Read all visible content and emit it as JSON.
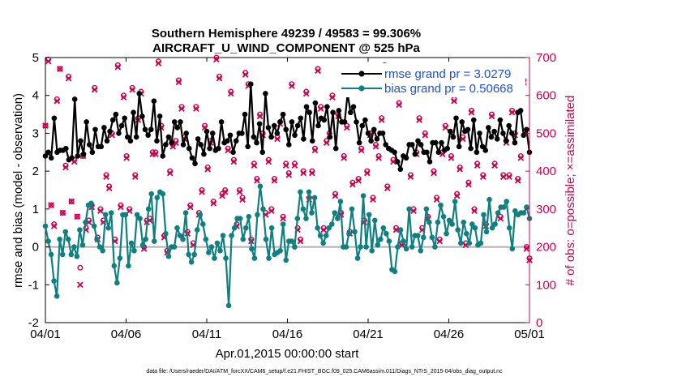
{
  "chart_data": {
    "type": "line",
    "title": [
      "Southern Hemisphere 49239 / 49583 = 99.306%",
      "AIRCRAFT_U_WIND_COMPONENT @ 525 hPa"
    ],
    "xlabel": "Apr.01,2015 00:00:00 start",
    "ylabel": "rmse and bias (model - observation)",
    "ylabel_right": "# of obs: o=possible; ×=assimilated",
    "footnote": "data file: /Users/raeder/DAI/ATM_forcXX/CAM6_setup/f.e21.FHIST_BGC.f09_025.CAM6assim.011/Diags_NTrS_2015-04/obs_diag_output.nc",
    "x_ticks": [
      "04/01",
      "04/06",
      "04/11",
      "04/16",
      "04/21",
      "04/26",
      "05/01"
    ],
    "xlim": [
      0,
      30
    ],
    "ylim": [
      -2,
      5
    ],
    "y_ticks": [
      "-2",
      "-1",
      "0",
      "1",
      "2",
      "3",
      "4",
      "5"
    ],
    "ylim_right": [
      0,
      700
    ],
    "y_ticks_right": [
      "0",
      "100",
      "200",
      "300",
      "400",
      "500",
      "600",
      "700"
    ],
    "legend_position": "top-right",
    "colors": {
      "rmse": "#000000",
      "bias": "#0f8080",
      "obs": "#d1004f",
      "legend_text": "#1d4fe0",
      "zero_line": "#b0b0b0"
    },
    "series": [
      {
        "name": "rmse grand pr = 3.0279",
        "axis": "left",
        "values": [
          2.4,
          2.5,
          2.35,
          3.4,
          2.5,
          2.55,
          2.55,
          2.6,
          2.3,
          2.35,
          3.9,
          2.4,
          2.8,
          2.45,
          3.3,
          2.7,
          2.5,
          3.1,
          2.65,
          2.65,
          3.15,
          2.8,
          3.05,
          3.35,
          3.5,
          3.0,
          3.2,
          3.4,
          2.9,
          2.8,
          3.55,
          2.9,
          4.05,
          3.45,
          3.1,
          2.95,
          3.1,
          3.85,
          2.8,
          3.45,
          2.4,
          2.7,
          2.9,
          2.75,
          3.3,
          3.15,
          3.3,
          2.7,
          3.0,
          2.6,
          2.35,
          2.2,
          2.85,
          2.7,
          2.45,
          3.05,
          2.6,
          3.0,
          2.55,
          2.6,
          3.3,
          2.75,
          2.8,
          2.95,
          2.5,
          2.8,
          3.0,
          3.0,
          3.5,
          2.65,
          4.3,
          2.9,
          2.75,
          3.25,
          2.5,
          4.05,
          3.15,
          2.9,
          3.2,
          3.0,
          3.3,
          3.5,
          3.1,
          2.7,
          3.3,
          2.95,
          3.2,
          3.4,
          2.85,
          3.7,
          3.55,
          2.8,
          3.8,
          3.2,
          3.4,
          3.35,
          3.7,
          2.9,
          3.55,
          2.6,
          3.6,
          3.3,
          3.3,
          4.05,
          3.55,
          3.7,
          3.3,
          2.75,
          3.2,
          3.35,
          3.0,
          2.8,
          3.1,
          2.85,
          3.0,
          3.0,
          2.7,
          2.6,
          2.55,
          2.5,
          2.25,
          2.05,
          2.4,
          2.35,
          2.7,
          2.7,
          2.45,
          2.8,
          2.7,
          2.5,
          2.5,
          2.25,
          2.75,
          2.75,
          2.5,
          2.75,
          2.55,
          2.6,
          3.05,
          2.9,
          3.4,
          2.65,
          3.3,
          3.05,
          3.1,
          2.6,
          3.35,
          2.5,
          3.0,
          2.65,
          2.55,
          3.15,
          2.9,
          3.05,
          2.85,
          3.35,
          3.0,
          2.8,
          3.2,
          3.0,
          2.75,
          3.55,
          3.6,
          2.95,
          3.1,
          2.5
        ],
        "note": "6-hourly values, equally spaced from 04/01 to 05/01"
      },
      {
        "name": "bias grand pr = 0.50668",
        "axis": "left",
        "values": [
          0.55,
          0.15,
          -0.2,
          -0.9,
          -1.3,
          0.2,
          -0.2,
          0.4,
          0.2,
          -0.2,
          0.0,
          -0.25,
          0.45,
          0.05,
          0.65,
          1.1,
          1.15,
          0.55,
          0.2,
          0.0,
          -0.1,
          0.85,
          0.5,
          0.9,
          -0.5,
          -0.95,
          -0.3,
          0.85,
          0.85,
          -0.5,
          0.1,
          -0.1,
          0.85,
          0.75,
          0.05,
          0.2,
          1.0,
          1.4,
          0.15,
          1.3,
          1.45,
          1.4,
          0.35,
          -0.25,
          0.0,
          0.0,
          0.5,
          0.3,
          0.2,
          0.9,
          -0.2,
          -0.4,
          -0.2,
          0.45,
          0.85,
          0.6,
          0.2,
          -0.15,
          0.0,
          -0.3,
          0.1,
          -0.1,
          0.3,
          -0.3,
          -1.55,
          0.3,
          0.5,
          0.75,
          0.75,
          0.2,
          0.5,
          0.8,
          -0.05,
          -0.3,
          0.85,
          1.6,
          1.0,
          0.2,
          -0.3,
          0.5,
          -0.2,
          -0.15,
          -0.1,
          0.6,
          -0.35,
          0.15,
          0.15,
          0.0,
          0.75,
          1.45,
          1.0,
          0.75,
          1.45,
          0.9,
          1.3,
          0.5,
          0.3,
          0.1,
          0.3,
          0.5,
          0.6,
          0.9,
          0.75,
          1.2,
          0.0,
          0.0,
          0.35,
          1.0,
          0.4,
          -0.3,
          0.0,
          1.35,
          0.0,
          0.85,
          -0.1,
          0.7,
          0.05,
          0.2,
          0.5,
          0.35,
          0.15,
          -0.6,
          -0.65,
          0.0,
          0.45,
          0.15,
          -0.05,
          1.0,
          0.0,
          0.3,
          0.3,
          -0.1,
          0.25,
          1.0,
          0.65,
          0.25,
          0.0,
          0.65,
          1.1,
          0.8,
          0.35,
          0.7,
          0.6,
          1.2,
          0.45,
          0.1,
          0.65,
          0.35,
          0.1,
          0.6,
          0.5,
          0.05,
          0.1,
          0.85,
          0.4,
          1.25,
          0.5,
          0.6,
          0.9,
          1.05,
          1.05,
          1.2,
          0.5,
          -0.05,
          0.95,
          0.85,
          0.9,
          0.9,
          1.05,
          0.75
        ]
      },
      {
        "name": "possible",
        "axis": "right",
        "marker": "o",
        "values": [
          520,
          695,
          310,
          260,
          590,
          670,
          290,
          415,
          650,
          320,
          430,
          280,
          145,
          440,
          250,
          270,
          310,
          620,
          225,
          300,
          270,
          390,
          360,
          500,
          220,
          680,
          310,
          600,
          440,
          300,
          620,
          390,
          540,
          610,
          200,
          270,
          275,
          450,
          450,
          690,
          520,
          230,
          190,
          400,
          470,
          480,
          640,
          570,
          490,
          240,
          310,
          210,
          570,
          290,
          350,
          520,
          410,
          480,
          320,
          700,
          650,
          340,
          350,
          460,
          610,
          430,
          260,
          350,
          330,
          660,
          630,
          220,
          420,
          380,
          550,
          500,
          290,
          430,
          300,
          380,
          490,
          530,
          280,
          420,
          395,
          630,
          420,
          250,
          220,
          400,
          610,
          330,
          400,
          460,
          670,
          570,
          250,
          480,
          500,
          600,
          340,
          550,
          290,
          440,
          520,
          240,
          370,
          610,
          380,
          460,
          270,
          400,
          500,
          330,
          470,
          440,
          540,
          680,
          360,
          620,
          430,
          250,
          580,
          210,
          660,
          610,
          390,
          300,
          450,
          540,
          250,
          500,
          280,
          610,
          400,
          330,
          220,
          450,
          520,
          650,
          440,
          590,
          340,
          410,
          490,
          210,
          370,
          560,
          300,
          420,
          630,
          390,
          260,
          650,
          550,
          420,
          610,
          280,
          390,
          480,
          390,
          560,
          500,
          380,
          440,
          640,
          200,
          170
        ]
      },
      {
        "name": "assimilated",
        "axis": "right",
        "marker": "x",
        "values": [
          520,
          690,
          310,
          255,
          585,
          670,
          290,
          410,
          645,
          320,
          425,
          280,
          100,
          440,
          245,
          265,
          305,
          615,
          220,
          295,
          265,
          385,
          355,
          495,
          215,
          675,
          305,
          595,
          435,
          295,
          615,
          385,
          535,
          605,
          195,
          265,
          270,
          445,
          445,
          685,
          515,
          225,
          185,
          395,
          465,
          475,
          635,
          565,
          485,
          235,
          305,
          205,
          565,
          285,
          345,
          515,
          405,
          475,
          315,
          695,
          645,
          335,
          345,
          455,
          605,
          425,
          255,
          345,
          325,
          655,
          625,
          215,
          415,
          375,
          545,
          495,
          285,
          425,
          295,
          375,
          485,
          525,
          275,
          415,
          390,
          625,
          415,
          245,
          215,
          395,
          605,
          325,
          395,
          455,
          665,
          565,
          245,
          475,
          495,
          595,
          335,
          545,
          285,
          435,
          515,
          235,
          365,
          605,
          375,
          455,
          265,
          395,
          495,
          325,
          465,
          435,
          535,
          675,
          355,
          615,
          425,
          245,
          575,
          205,
          655,
          605,
          385,
          295,
          445,
          535,
          245,
          495,
          275,
          605,
          395,
          325,
          215,
          445,
          515,
          645,
          435,
          585,
          335,
          405,
          485,
          205,
          365,
          555,
          295,
          415,
          625,
          385,
          255,
          645,
          545,
          415,
          605,
          275,
          385,
          475,
          385,
          555,
          495,
          375,
          435,
          635,
          195,
          165
        ]
      }
    ]
  }
}
